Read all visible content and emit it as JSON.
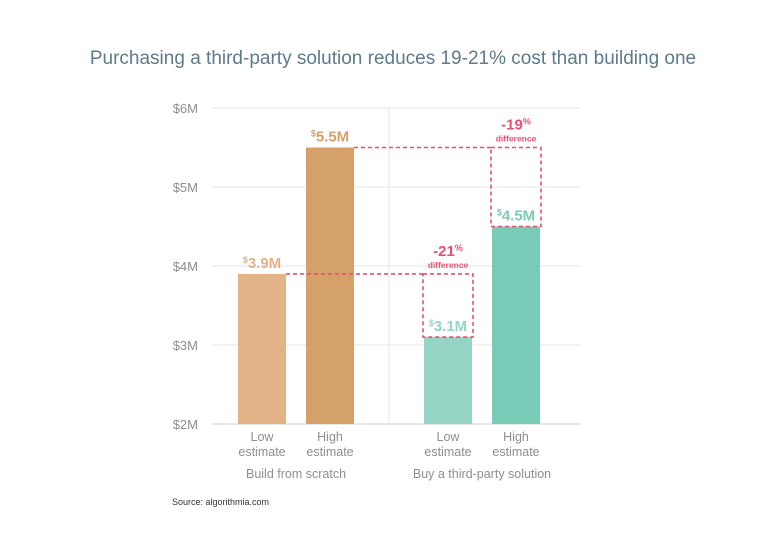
{
  "colors": {
    "background": "#ffffff",
    "title": "#5f7a8a",
    "axis_text": "#8e8e8e",
    "grid": "#e6e6e6",
    "build_low": "#e1b387",
    "build_high": "#d4a16b",
    "buy_low": "#94d4c4",
    "buy_high": "#77cbb7",
    "diff": "#ec4f6e",
    "source": "#333333"
  },
  "source": "Source: algorithmia.com",
  "chart_data": {
    "type": "bar",
    "title": "Purchasing a third-party solution reduces 19-21% cost than building one",
    "xlabel": "",
    "ylabel": "",
    "ylim": [
      2,
      6
    ],
    "grid": true,
    "y_ticks": [
      {
        "value": 2,
        "label": "$2M"
      },
      {
        "value": 3,
        "label": "$3M"
      },
      {
        "value": 4,
        "label": "$4M"
      },
      {
        "value": 5,
        "label": "$5M"
      },
      {
        "value": 6,
        "label": "$6M"
      }
    ],
    "groups": [
      {
        "label": "Build from scratch",
        "bars": [
          {
            "category": [
              "Low",
              "estimate"
            ],
            "value": 3.9,
            "label_symbol": "$",
            "label_value": "3.9M",
            "color": "#e1b387"
          },
          {
            "category": [
              "High",
              "estimate"
            ],
            "value": 5.5,
            "label_symbol": "$",
            "label_value": "5.5M",
            "color": "#d4a16b"
          }
        ]
      },
      {
        "label": "Buy a third-party solution",
        "bars": [
          {
            "category": [
              "Low",
              "estimate"
            ],
            "value": 3.1,
            "label_symbol": "$",
            "label_value": "3.1M",
            "color": "#94d4c4",
            "difference": {
              "reference": 3.9,
              "value": "-21",
              "unit": "%",
              "word": "difference"
            }
          },
          {
            "category": [
              "High",
              "estimate"
            ],
            "value": 4.5,
            "label_symbol": "$",
            "label_value": "4.5M",
            "color": "#77cbb7",
            "difference": {
              "reference": 5.5,
              "value": "-19",
              "unit": "%",
              "word": "difference"
            }
          }
        ]
      }
    ]
  }
}
